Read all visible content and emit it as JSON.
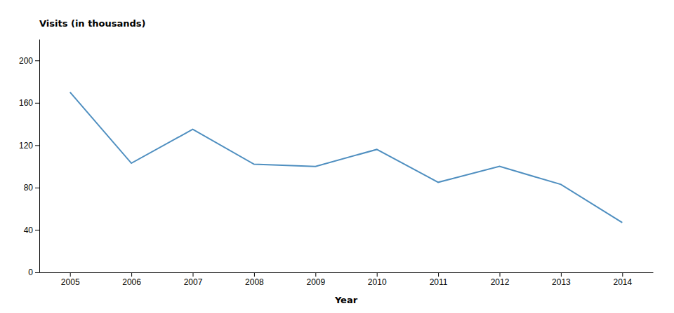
{
  "chart_data": {
    "type": "line",
    "x": [
      2005,
      2006,
      2007,
      2008,
      2009,
      2010,
      2011,
      2012,
      2013,
      2014
    ],
    "values": [
      170,
      103,
      135,
      102,
      100,
      116,
      85,
      100,
      83,
      47
    ],
    "color": "#4f8fc0",
    "xlabel": "Year",
    "ylabel": "Visits (in thousands)",
    "xlim": [
      2004.5,
      2014.5
    ],
    "xticks": [
      2005,
      2006,
      2007,
      2008,
      2009,
      2010,
      2011,
      2012,
      2013,
      2014
    ],
    "ylim": [
      0,
      220
    ],
    "yticks": [
      0,
      40,
      80,
      120,
      160,
      200
    ],
    "grid": false
  }
}
